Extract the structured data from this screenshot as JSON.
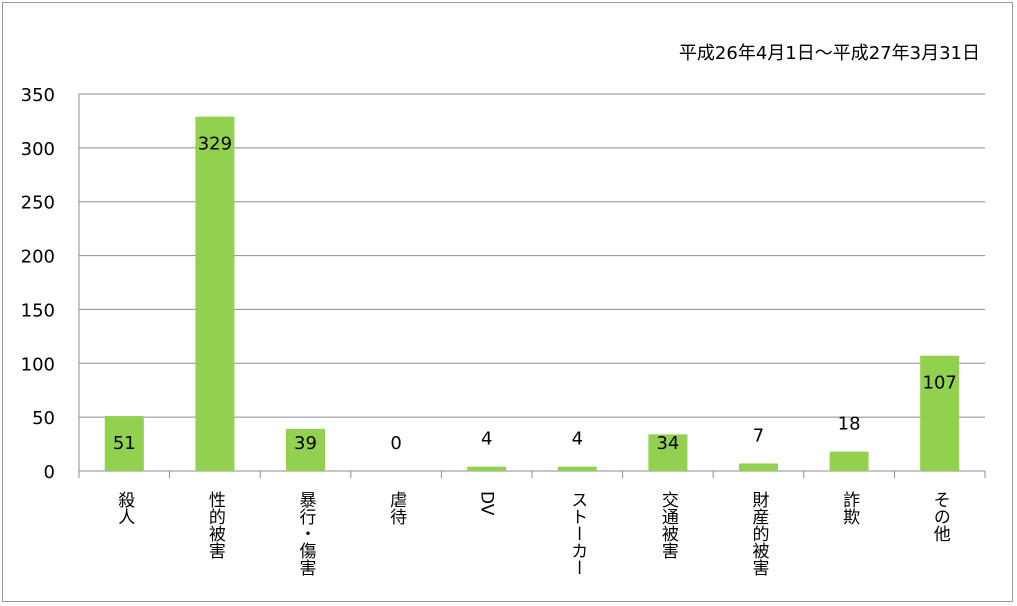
{
  "date_range": "平成26年4月1日～平成27年3月31日",
  "colors": {
    "bar": "#92d050",
    "grid": "#8c8c8c",
    "text": "#000000"
  },
  "chart_data": {
    "type": "bar",
    "categories": [
      "殺人",
      "性的被害",
      "暴行・傷害",
      "虐待",
      "DV",
      "ストーカー",
      "交通被害",
      "財産的被害",
      "詐欺",
      "その他"
    ],
    "values": [
      51,
      329,
      39,
      0,
      4,
      4,
      34,
      7,
      18,
      107
    ],
    "ylim": [
      0,
      350
    ],
    "yticks": [
      0,
      50,
      100,
      150,
      200,
      250,
      300,
      350
    ],
    "grid": true,
    "data_labels": true,
    "legend": "none"
  }
}
